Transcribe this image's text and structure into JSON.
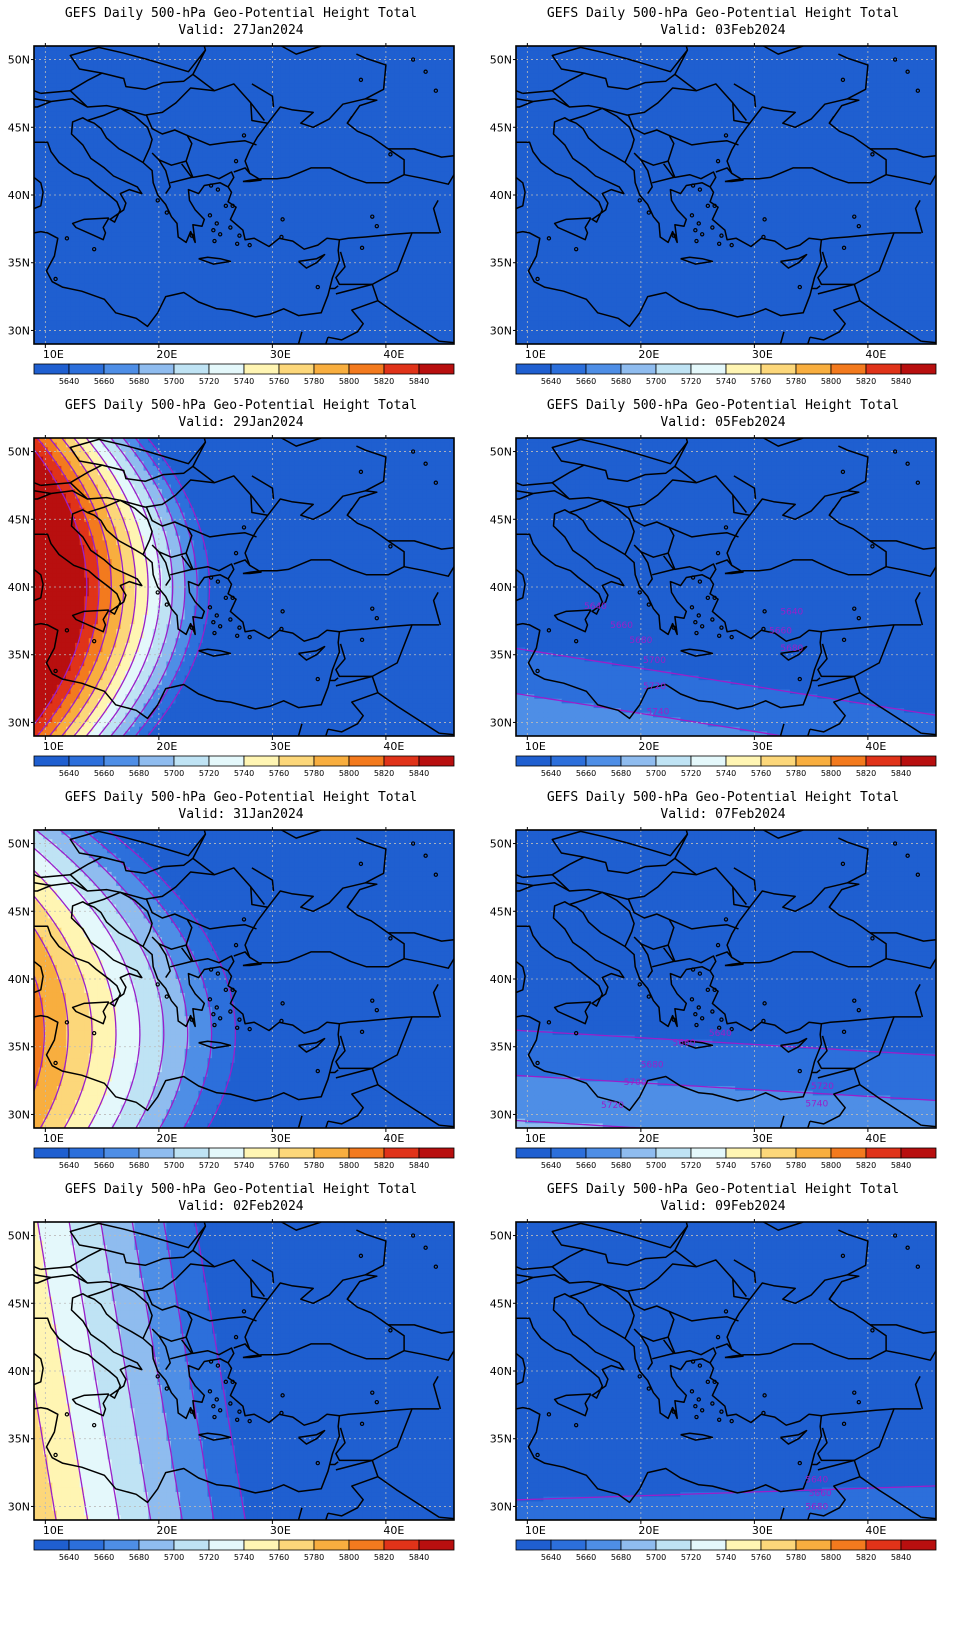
{
  "lon_ticks": [
    "10E",
    "20E",
    "30E",
    "40E"
  ],
  "lat_ticks": [
    "50N",
    "45N",
    "40N",
    "35N",
    "30N"
  ],
  "colorbar": {
    "labels": [
      "5640",
      "5660",
      "5680",
      "5700",
      "5720",
      "5740",
      "5760",
      "5780",
      "5800",
      "5820",
      "5840"
    ],
    "colors": [
      "#1f5fd0",
      "#2c6fdb",
      "#4e8ee6",
      "#8fbcef",
      "#bfe3f4",
      "#e4f8fb",
      "#fff5b3",
      "#fcd77a",
      "#f8ae3f",
      "#f37a1e",
      "#e03319",
      "#b80f0f"
    ]
  },
  "colors": {
    "contour": "#9a1fc9",
    "coast": "#000000",
    "grid": "#bbbbbb"
  },
  "panels": [
    {
      "title": "GEFS Daily 500-hPa Geo-Potential Height Total",
      "valid": "Valid: 27Jan2024",
      "labels": []
    },
    {
      "title": "GEFS Daily 500-hPa Geo-Potential Height Total",
      "valid": "Valid: 03Feb2024",
      "labels": []
    },
    {
      "title": "GEFS Daily 500-hPa Geo-Potential Height Total",
      "valid": "Valid: 29Jan2024",
      "labels": []
    },
    {
      "title": "GEFS Daily 500-hPa Geo-Potential Height Total",
      "valid": "Valid: 05Feb2024",
      "labels": [
        {
          "text": "5640",
          "lon": 16.0,
          "lat": 38.6
        },
        {
          "text": "5640",
          "lon": 33.3,
          "lat": 38.2
        },
        {
          "text": "5660",
          "lon": 18.3,
          "lat": 37.2
        },
        {
          "text": "5660",
          "lon": 32.3,
          "lat": 36.8
        },
        {
          "text": "5680",
          "lon": 20.0,
          "lat": 36.1
        },
        {
          "text": "5680",
          "lon": 33.3,
          "lat": 35.5
        },
        {
          "text": "5700",
          "lon": 21.2,
          "lat": 34.6
        },
        {
          "text": "5720",
          "lon": 21.2,
          "lat": 32.7
        },
        {
          "text": "5740",
          "lon": 21.5,
          "lat": 30.8
        }
      ]
    },
    {
      "title": "GEFS Daily 500-hPa Geo-Potential Height Total",
      "valid": "Valid: 31Jan2024",
      "labels": []
    },
    {
      "title": "GEFS Daily 500-hPa Geo-Potential Height Total",
      "valid": "Valid: 07Feb2024",
      "labels": [
        {
          "text": "5640",
          "lon": 27.0,
          "lat": 36.0
        },
        {
          "text": "5660",
          "lon": 23.8,
          "lat": 35.3
        },
        {
          "text": "5680",
          "lon": 21.0,
          "lat": 33.7
        },
        {
          "text": "5700",
          "lon": 19.5,
          "lat": 32.4
        },
        {
          "text": "5720",
          "lon": 17.5,
          "lat": 30.7
        },
        {
          "text": "5720",
          "lon": 36.0,
          "lat": 32.1
        },
        {
          "text": "5740",
          "lon": 35.5,
          "lat": 30.8
        }
      ]
    },
    {
      "title": "GEFS Daily 500-hPa Geo-Potential Height Total",
      "valid": "Valid: 02Feb2024",
      "labels": []
    },
    {
      "title": "GEFS Daily 500-hPa Geo-Potential Height Total",
      "valid": "Valid: 09Feb2024",
      "labels": [
        {
          "text": "5640",
          "lon": 35.5,
          "lat": 32.0
        },
        {
          "text": "5660",
          "lon": 35.8,
          "lat": 31.0
        },
        {
          "text": "5680",
          "lon": 35.5,
          "lat": 30.0
        }
      ]
    }
  ]
}
